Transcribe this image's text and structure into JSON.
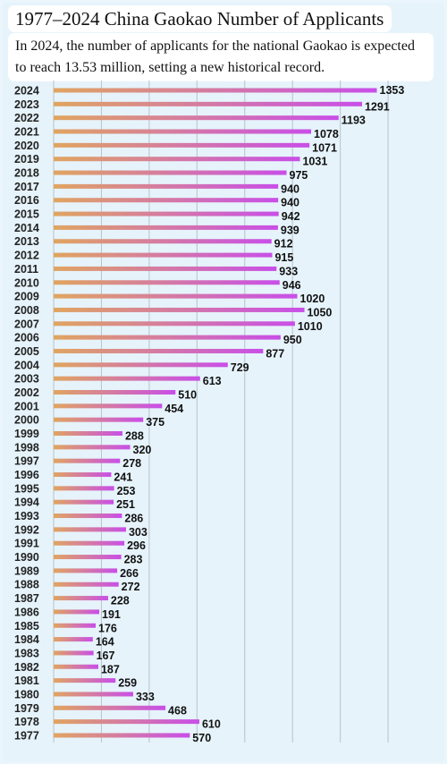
{
  "header": {
    "title": "1977–2024 China Gaokao Number of Applicants",
    "subtitle": "In 2024, the number of applicants for the national Gaokao is expected to reach 13.53 million, setting a new historical record."
  },
  "colors": {
    "background": "#e6f3fb",
    "bar_start": "#e0a560",
    "bar_end": "#c94ee8",
    "grid": "#b9c2c9"
  },
  "chart_data": {
    "type": "bar",
    "orientation": "horizontal",
    "title": "1977–2024 China Gaokao Number of Applicants",
    "categories": [
      "2024",
      "2023",
      "2022",
      "2021",
      "2020",
      "2019",
      "2018",
      "2017",
      "2016",
      "2015",
      "2014",
      "2013",
      "2012",
      "2011",
      "2010",
      "2009",
      "2008",
      "2007",
      "2006",
      "2005",
      "2004",
      "2003",
      "2002",
      "2001",
      "2000",
      "1999",
      "1998",
      "1997",
      "1996",
      "1995",
      "1994",
      "1993",
      "1992",
      "1991",
      "1990",
      "1989",
      "1988",
      "1987",
      "1986",
      "1985",
      "1984",
      "1983",
      "1982",
      "1981",
      "1980",
      "1979",
      "1978",
      "1977"
    ],
    "values": [
      1353,
      1291,
      1193,
      1078,
      1071,
      1031,
      975,
      940,
      940,
      942,
      939,
      912,
      915,
      933,
      946,
      1020,
      1050,
      1010,
      950,
      877,
      729,
      613,
      510,
      454,
      375,
      288,
      320,
      278,
      241,
      253,
      251,
      286,
      303,
      296,
      283,
      266,
      272,
      228,
      191,
      176,
      164,
      167,
      187,
      259,
      333,
      468,
      610,
      570
    ],
    "value_labels": [
      "1353",
      "1291",
      "1193",
      "1078",
      "1071",
      "1031",
      "975",
      "940",
      "940",
      "942",
      "939",
      "912",
      "915",
      "933",
      "946",
      "1020",
      "1050",
      "1010",
      "950",
      "877",
      "729",
      "613",
      "510",
      "454",
      "375",
      "288",
      "320",
      "278",
      "241",
      "253",
      "251",
      "286",
      "303",
      "296",
      "283",
      "266",
      "272",
      "228",
      "191",
      "176",
      "164",
      "167",
      "187",
      "259",
      "333",
      "468",
      "610",
      "570"
    ],
    "xlim": [
      0,
      1500
    ],
    "grid": "vertical",
    "xlabel": "",
    "ylabel": ""
  }
}
